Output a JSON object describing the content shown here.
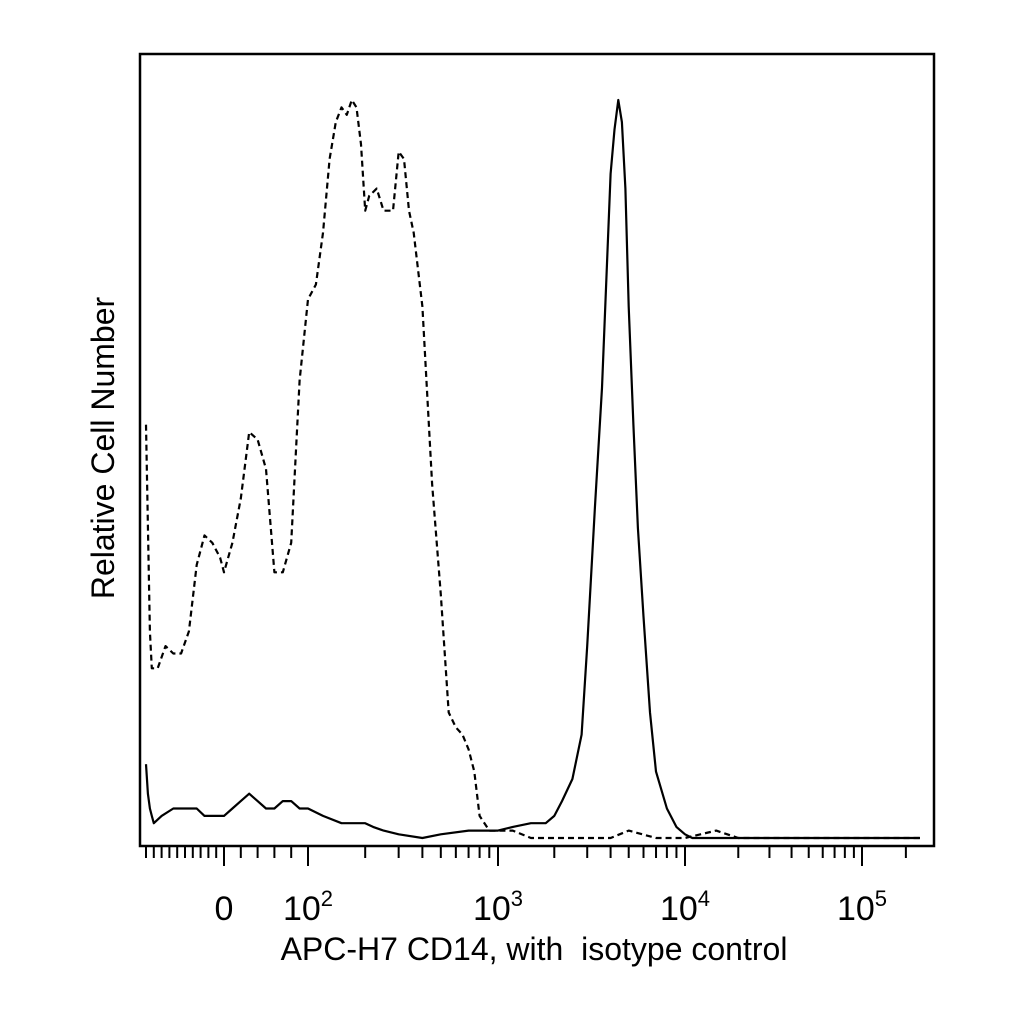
{
  "chart_data": {
    "type": "line",
    "xlabel": "APC-H7 CD14, with  isotype control",
    "ylabel": "Relative Cell Number",
    "x_scale": "biexponential (logicle)",
    "x_ticks": [
      {
        "value": 0,
        "base": "0",
        "exp": ""
      },
      {
        "value": 100,
        "base": "10",
        "exp": "2"
      },
      {
        "value": 1000,
        "base": "10",
        "exp": "3"
      },
      {
        "value": 10000,
        "base": "10",
        "exp": "4"
      },
      {
        "value": 100000,
        "base": "10",
        "exp": "5"
      }
    ],
    "xlim": [
      -200,
      250000
    ],
    "ylim": [
      0,
      1
    ],
    "grid": false,
    "legend": "none",
    "series": [
      {
        "style": "dashed",
        "color": "#000000",
        "x": [
          -200,
          -190,
          -185,
          -170,
          -150,
          -130,
          -110,
          -90,
          -70,
          -50,
          -30,
          -10,
          0,
          10,
          20,
          30,
          40,
          50,
          60,
          70,
          80,
          90,
          100,
          110,
          120,
          130,
          140,
          150,
          160,
          170,
          180,
          190,
          200,
          210,
          230,
          250,
          280,
          300,
          320,
          340,
          360,
          400,
          450,
          500,
          550,
          600,
          650,
          700,
          750,
          800,
          900,
          1000,
          1200,
          1500,
          2000,
          2500,
          3000,
          4000,
          5000,
          7000,
          10000,
          15000,
          20000,
          50000,
          100000,
          250000
        ],
        "y": [
          0.56,
          0.28,
          0.23,
          0.23,
          0.26,
          0.25,
          0.25,
          0.28,
          0.37,
          0.41,
          0.4,
          0.38,
          0.36,
          0.4,
          0.46,
          0.55,
          0.54,
          0.5,
          0.36,
          0.36,
          0.4,
          0.62,
          0.73,
          0.75,
          0.82,
          0.92,
          0.97,
          0.99,
          0.98,
          1.0,
          0.99,
          0.94,
          0.85,
          0.87,
          0.88,
          0.85,
          0.85,
          0.93,
          0.92,
          0.85,
          0.82,
          0.72,
          0.48,
          0.33,
          0.17,
          0.15,
          0.14,
          0.12,
          0.09,
          0.03,
          0.01,
          0.01,
          0.01,
          0.0,
          0.0,
          0.0,
          0.0,
          0.0,
          0.01,
          0.0,
          0.0,
          0.01,
          0.0,
          0.0,
          0.0,
          0.0
        ]
      },
      {
        "style": "solid",
        "color": "#000000",
        "x": [
          -200,
          -195,
          -190,
          -185,
          -180,
          -160,
          -130,
          -110,
          -90,
          -70,
          -50,
          -30,
          -10,
          0,
          10,
          20,
          30,
          40,
          50,
          60,
          70,
          80,
          90,
          100,
          120,
          150,
          180,
          200,
          220,
          250,
          300,
          400,
          500,
          700,
          1000,
          1200,
          1500,
          1800,
          2000,
          2200,
          2500,
          2800,
          3000,
          3300,
          3600,
          4000,
          4200,
          4400,
          4600,
          4800,
          5000,
          5300,
          5600,
          6000,
          6500,
          7000,
          8000,
          9000,
          10000,
          11000,
          12000,
          15000,
          20000,
          50000,
          100000,
          250000
        ],
        "y": [
          0.1,
          0.06,
          0.04,
          0.03,
          0.02,
          0.03,
          0.04,
          0.04,
          0.04,
          0.04,
          0.03,
          0.03,
          0.03,
          0.03,
          0.04,
          0.05,
          0.06,
          0.05,
          0.04,
          0.04,
          0.05,
          0.05,
          0.04,
          0.04,
          0.03,
          0.02,
          0.02,
          0.02,
          0.015,
          0.01,
          0.005,
          0.0,
          0.005,
          0.01,
          0.01,
          0.015,
          0.02,
          0.02,
          0.03,
          0.05,
          0.08,
          0.14,
          0.26,
          0.45,
          0.61,
          0.9,
          0.96,
          1.0,
          0.97,
          0.88,
          0.72,
          0.56,
          0.42,
          0.3,
          0.17,
          0.09,
          0.04,
          0.015,
          0.005,
          0.0,
          0.0,
          0.0,
          0.0,
          0.0,
          0.0,
          0.0
        ]
      }
    ]
  }
}
